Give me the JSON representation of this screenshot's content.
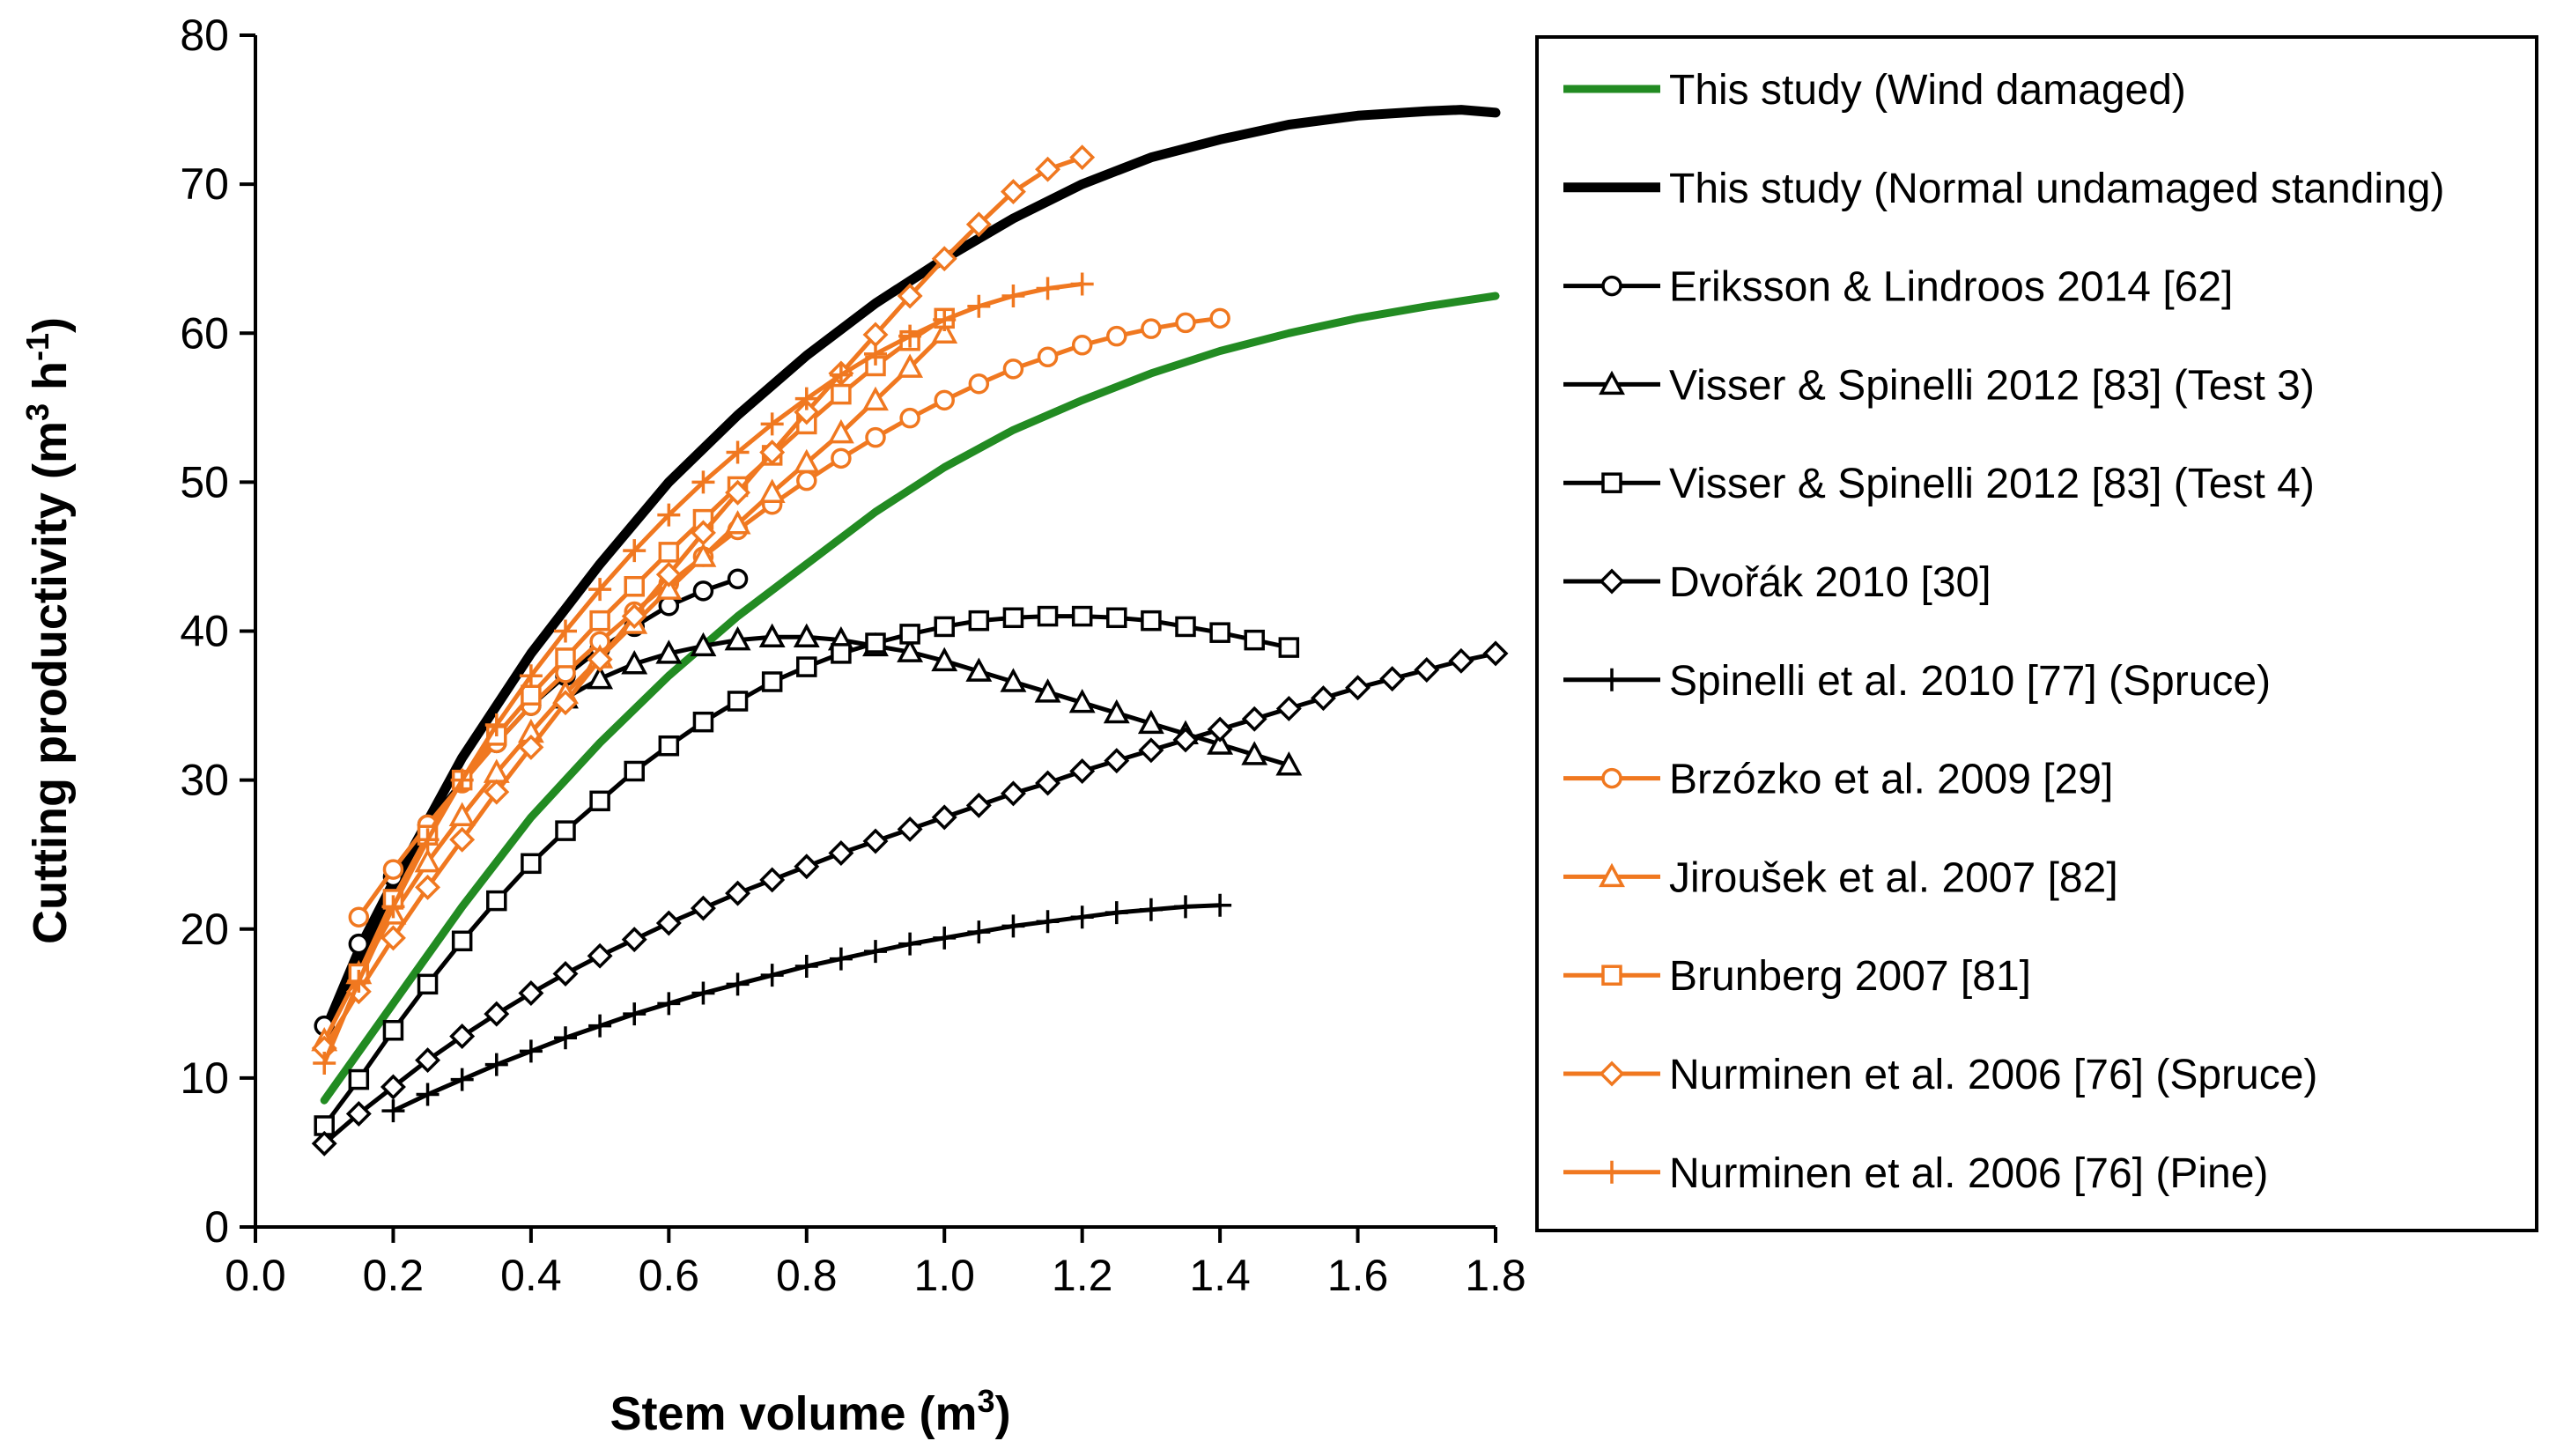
{
  "chart_data": {
    "type": "line",
    "title": "",
    "xlabel": "Stem volume (m",
    "xlabel_sup": "3",
    "xlabel_end": ")",
    "ylabel": "Cutting productivity (m",
    "ylabel_sup1": "3",
    "ylabel_mid": " h",
    "ylabel_sup2": "-1",
    "ylabel_end": ")",
    "xlim": [
      0.0,
      1.8
    ],
    "ylim": [
      0,
      80
    ],
    "xticks": [
      "0.0",
      "0.2",
      "0.4",
      "0.6",
      "0.8",
      "1.0",
      "1.2",
      "1.4",
      "1.6",
      "1.8"
    ],
    "yticks": [
      "0",
      "10",
      "20",
      "30",
      "40",
      "50",
      "60",
      "70",
      "80"
    ],
    "legend_position": "right",
    "series": [
      {
        "name": "This study (Wind damaged)",
        "color": "#228B22",
        "width": 9,
        "marker": "none",
        "x": [
          0.1,
          0.2,
          0.3,
          0.4,
          0.5,
          0.6,
          0.7,
          0.8,
          0.9,
          1.0,
          1.1,
          1.2,
          1.3,
          1.4,
          1.5,
          1.6,
          1.7,
          1.8
        ],
        "y": [
          8.5,
          15.0,
          21.5,
          27.5,
          32.5,
          37.0,
          41.0,
          44.5,
          48.0,
          51.0,
          53.5,
          55.5,
          57.3,
          58.8,
          60.0,
          61.0,
          61.8,
          62.5
        ]
      },
      {
        "name": "This study (Normal undamaged standing)",
        "color": "#000000",
        "width": 11,
        "marker": "none",
        "x": [
          0.1,
          0.2,
          0.3,
          0.4,
          0.5,
          0.6,
          0.7,
          0.8,
          0.9,
          1.0,
          1.1,
          1.2,
          1.3,
          1.4,
          1.5,
          1.6,
          1.7,
          1.75,
          1.8
        ],
        "y": [
          13.0,
          23.0,
          31.5,
          38.5,
          44.5,
          50.0,
          54.5,
          58.5,
          62.0,
          65.0,
          67.7,
          70.0,
          71.8,
          73.0,
          74.0,
          74.6,
          74.9,
          75.0,
          74.8
        ]
      },
      {
        "name": "Eriksson & Lindroos 2014 [62]",
        "color": "#000000",
        "width": 5,
        "marker": "circle",
        "x": [
          0.1,
          0.15,
          0.2,
          0.25,
          0.3,
          0.35,
          0.4,
          0.45,
          0.5,
          0.55,
          0.6,
          0.65,
          0.7
        ],
        "y": [
          13.5,
          19.0,
          23.5,
          27.0,
          30.0,
          32.5,
          35.0,
          37.0,
          38.8,
          40.3,
          41.7,
          42.7,
          43.5
        ]
      },
      {
        "name": "Visser & Spinelli 2012 [83] (Test 3)",
        "color": "#000000",
        "width": 5,
        "marker": "triangle",
        "x": [
          0.45,
          0.5,
          0.55,
          0.6,
          0.65,
          0.7,
          0.75,
          0.8,
          0.85,
          0.9,
          0.95,
          1.0,
          1.05,
          1.1,
          1.15,
          1.2,
          1.25,
          1.3,
          1.35,
          1.4,
          1.45,
          1.5
        ],
        "y": [
          35.5,
          36.8,
          37.8,
          38.5,
          39.0,
          39.4,
          39.6,
          39.6,
          39.4,
          39.0,
          38.6,
          38.0,
          37.3,
          36.6,
          35.9,
          35.2,
          34.5,
          33.8,
          33.1,
          32.4,
          31.7,
          31.0
        ]
      },
      {
        "name": "Visser & Spinelli 2012 [83] (Test 4)",
        "color": "#000000",
        "width": 5,
        "marker": "square",
        "x": [
          0.1,
          0.15,
          0.2,
          0.25,
          0.3,
          0.35,
          0.4,
          0.45,
          0.5,
          0.55,
          0.6,
          0.65,
          0.7,
          0.75,
          0.8,
          0.85,
          0.9,
          0.95,
          1.0,
          1.05,
          1.1,
          1.15,
          1.2,
          1.25,
          1.3,
          1.35,
          1.4,
          1.45,
          1.5
        ],
        "y": [
          6.8,
          9.9,
          13.2,
          16.3,
          19.2,
          21.9,
          24.4,
          26.6,
          28.6,
          30.6,
          32.3,
          33.9,
          35.3,
          36.6,
          37.6,
          38.5,
          39.2,
          39.8,
          40.3,
          40.7,
          40.9,
          41.0,
          41.0,
          40.9,
          40.7,
          40.3,
          39.9,
          39.4,
          38.9
        ]
      },
      {
        "name": "Dvořák 2010 [30]",
        "color": "#000000",
        "width": 5,
        "marker": "diamond",
        "x": [
          0.1,
          0.15,
          0.2,
          0.25,
          0.3,
          0.35,
          0.4,
          0.45,
          0.5,
          0.55,
          0.6,
          0.65,
          0.7,
          0.75,
          0.8,
          0.85,
          0.9,
          0.95,
          1.0,
          1.05,
          1.1,
          1.15,
          1.2,
          1.25,
          1.3,
          1.35,
          1.4,
          1.45,
          1.5,
          1.55,
          1.6,
          1.65,
          1.7,
          1.75,
          1.8
        ],
        "y": [
          5.6,
          7.6,
          9.4,
          11.2,
          12.8,
          14.3,
          15.7,
          17.0,
          18.2,
          19.3,
          20.4,
          21.4,
          22.4,
          23.3,
          24.2,
          25.1,
          25.9,
          26.7,
          27.5,
          28.3,
          29.1,
          29.8,
          30.6,
          31.3,
          32.0,
          32.7,
          33.4,
          34.1,
          34.8,
          35.5,
          36.2,
          36.8,
          37.4,
          38.0,
          38.5
        ]
      },
      {
        "name": "Spinelli et al. 2010 [77] (Spruce)",
        "color": "#000000",
        "width": 5,
        "marker": "plus",
        "x": [
          0.2,
          0.25,
          0.3,
          0.35,
          0.4,
          0.45,
          0.5,
          0.55,
          0.6,
          0.65,
          0.7,
          0.75,
          0.8,
          0.85,
          0.9,
          0.95,
          1.0,
          1.05,
          1.1,
          1.15,
          1.2,
          1.25,
          1.3,
          1.35,
          1.4
        ],
        "y": [
          7.8,
          8.9,
          9.9,
          10.9,
          11.8,
          12.7,
          13.5,
          14.3,
          15.0,
          15.7,
          16.3,
          16.9,
          17.5,
          18.0,
          18.5,
          19.0,
          19.4,
          19.8,
          20.2,
          20.5,
          20.8,
          21.1,
          21.3,
          21.5,
          21.6
        ]
      },
      {
        "name": "Brzózko et al. 2009 [29]",
        "color": "#F07820",
        "width": 5,
        "marker": "circle",
        "x": [
          0.15,
          0.2,
          0.25,
          0.3,
          0.35,
          0.4,
          0.45,
          0.5,
          0.55,
          0.6,
          0.65,
          0.7,
          0.75,
          0.8,
          0.85,
          0.9,
          0.95,
          1.0,
          1.05,
          1.1,
          1.15,
          1.2,
          1.25,
          1.3,
          1.35,
          1.4
        ],
        "y": [
          20.8,
          24.0,
          27.0,
          29.8,
          32.5,
          35.0,
          37.2,
          39.3,
          41.3,
          43.2,
          45.0,
          46.8,
          48.5,
          50.1,
          51.6,
          53.0,
          54.3,
          55.5,
          56.6,
          57.6,
          58.4,
          59.2,
          59.8,
          60.3,
          60.7,
          61.0
        ]
      },
      {
        "name": "Jiroušek et al. 2007 [82]",
        "color": "#F07820",
        "width": 5,
        "marker": "triangle",
        "x": [
          0.1,
          0.15,
          0.2,
          0.25,
          0.3,
          0.35,
          0.4,
          0.45,
          0.5,
          0.55,
          0.6,
          0.65,
          0.7,
          0.75,
          0.8,
          0.85,
          0.9,
          0.95,
          1.0
        ],
        "y": [
          12.5,
          17.0,
          21.0,
          24.5,
          27.6,
          30.5,
          33.2,
          35.8,
          38.2,
          40.5,
          42.8,
          45.0,
          47.2,
          49.3,
          51.3,
          53.3,
          55.5,
          57.7,
          60.0
        ]
      },
      {
        "name": "Brunberg 2007 [81]",
        "color": "#F07820",
        "width": 5,
        "marker": "square",
        "x": [
          0.15,
          0.2,
          0.25,
          0.3,
          0.35,
          0.4,
          0.45,
          0.5,
          0.55,
          0.6,
          0.65,
          0.7,
          0.75,
          0.8,
          0.85,
          0.9,
          0.95,
          1.0
        ],
        "y": [
          17.0,
          22.0,
          26.3,
          30.0,
          33.0,
          35.7,
          38.2,
          40.7,
          43.0,
          45.3,
          47.5,
          49.7,
          51.8,
          53.9,
          55.9,
          57.8,
          59.5,
          61.0
        ]
      },
      {
        "name": "Nurminen et al. 2006 [76] (Spruce)",
        "color": "#F07820",
        "width": 5,
        "marker": "diamond",
        "x": [
          0.1,
          0.15,
          0.2,
          0.25,
          0.3,
          0.35,
          0.4,
          0.45,
          0.5,
          0.55,
          0.6,
          0.65,
          0.7,
          0.75,
          0.8,
          0.85,
          0.9,
          0.95,
          1.0,
          1.05,
          1.1,
          1.15,
          1.2
        ],
        "y": [
          12.0,
          15.8,
          19.4,
          22.8,
          26.0,
          29.2,
          32.2,
          35.2,
          38.1,
          41.0,
          43.8,
          46.6,
          49.3,
          52.0,
          54.7,
          57.3,
          59.9,
          62.5,
          65.0,
          67.3,
          69.5,
          71.0,
          71.8
        ]
      },
      {
        "name": "Nurminen et al. 2006 [76] (Pine)",
        "color": "#F07820",
        "width": 5,
        "marker": "plus",
        "x": [
          0.1,
          0.15,
          0.2,
          0.25,
          0.3,
          0.35,
          0.4,
          0.45,
          0.5,
          0.55,
          0.6,
          0.65,
          0.7,
          0.75,
          0.8,
          0.85,
          0.9,
          0.95,
          1.0,
          1.05,
          1.1,
          1.15,
          1.2
        ],
        "y": [
          11.0,
          16.5,
          21.5,
          26.0,
          30.0,
          33.7,
          37.0,
          40.0,
          42.8,
          45.4,
          47.8,
          50.0,
          52.0,
          53.9,
          55.6,
          57.2,
          58.6,
          59.8,
          60.9,
          61.8,
          62.5,
          63.0,
          63.3
        ]
      }
    ]
  }
}
